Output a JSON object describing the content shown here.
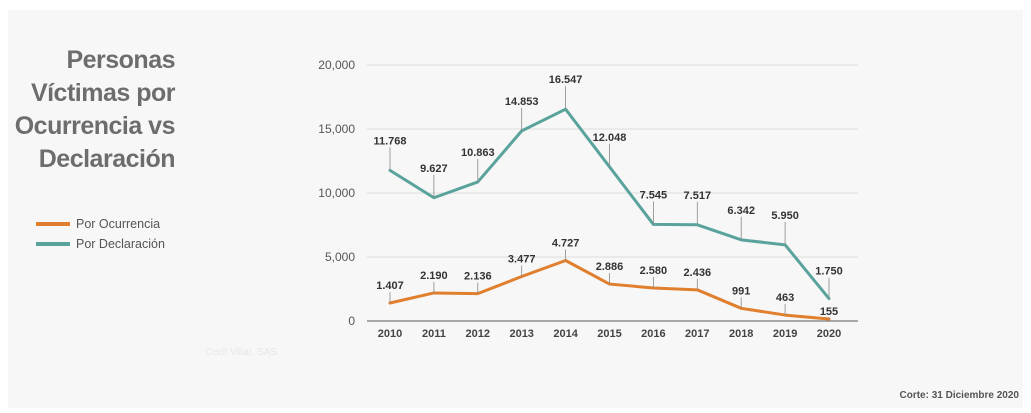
{
  "title_lines": [
    "Personas",
    "Víctimas por",
    "Ocurrencia vs",
    "Declaración"
  ],
  "legend": [
    {
      "label": "Por Ocurrencia",
      "color": "#e07f2e"
    },
    {
      "label": "Por Declaración",
      "color": "#5aa39c"
    }
  ],
  "footnote": "Corte: 31 Diciembre 2020",
  "watermark": "Cecil Villar, SAS",
  "chart_data": {
    "type": "line",
    "title": "Personas Víctimas por Ocurrencia vs Declaración",
    "x": [
      "2010",
      "2011",
      "2012",
      "2013",
      "2014",
      "2015",
      "2016",
      "2017",
      "2018",
      "2019",
      "2020"
    ],
    "ylim": [
      0,
      20000
    ],
    "yticks": [
      0,
      5000,
      10000,
      15000,
      20000
    ],
    "ytick_labels": [
      "0",
      "5,000",
      "10,000",
      "15,000",
      "20,000"
    ],
    "grid": true,
    "legend_position": "left",
    "series": [
      {
        "name": "Por Ocurrencia",
        "color": "#e07f2e",
        "values": [
          1407,
          2190,
          2136,
          3477,
          4727,
          2886,
          2580,
          2436,
          991,
          463,
          155
        ],
        "labels": [
          "1.407",
          "2.190",
          "2.136",
          "3.477",
          "4.727",
          "2.886",
          "2.580",
          "2.436",
          "991",
          "463",
          "155"
        ]
      },
      {
        "name": "Por Declaración",
        "color": "#5aa39c",
        "values": [
          11768,
          9627,
          10863,
          14853,
          16547,
          12048,
          7545,
          7517,
          6342,
          5950,
          1750
        ],
        "labels": [
          "11.768",
          "9.627",
          "10.863",
          "14.853",
          "16.547",
          "12.048",
          "7.545",
          "7.517",
          "6.342",
          "5.950",
          "1.750"
        ]
      }
    ]
  }
}
